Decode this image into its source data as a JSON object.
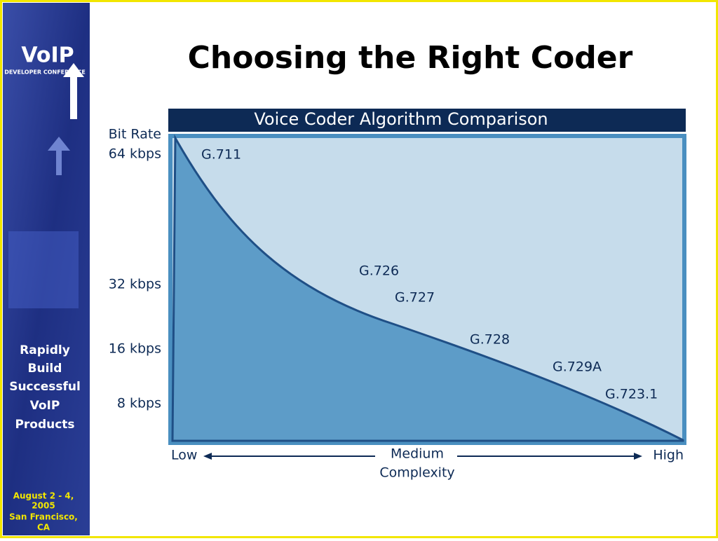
{
  "slide": {
    "title": "Choosing the Right Coder"
  },
  "sidebar": {
    "logo_mark": "VoIP",
    "logo_sub": "DEVELOPER CONFERENCE",
    "tagline": [
      "Rapidly",
      "Build",
      "Successful",
      "VoIP",
      "Products"
    ],
    "event": [
      "August 2 - 4,",
      "2005",
      "San Francisco,",
      "CA"
    ]
  },
  "diagram": {
    "title": "Voice Coder Algorithm Comparison",
    "y_axis_title": "Bit Rate",
    "y_labels": [
      "64 kbps",
      "32 kbps",
      "16 kbps",
      "8 kbps"
    ],
    "coders": [
      "G.711",
      "G.726",
      "G.727",
      "G.728",
      "G.729A",
      "G.723.1"
    ],
    "x_labels": {
      "low": "Low",
      "medium": "Medium",
      "high": "High",
      "title": "Complexity"
    }
  }
}
